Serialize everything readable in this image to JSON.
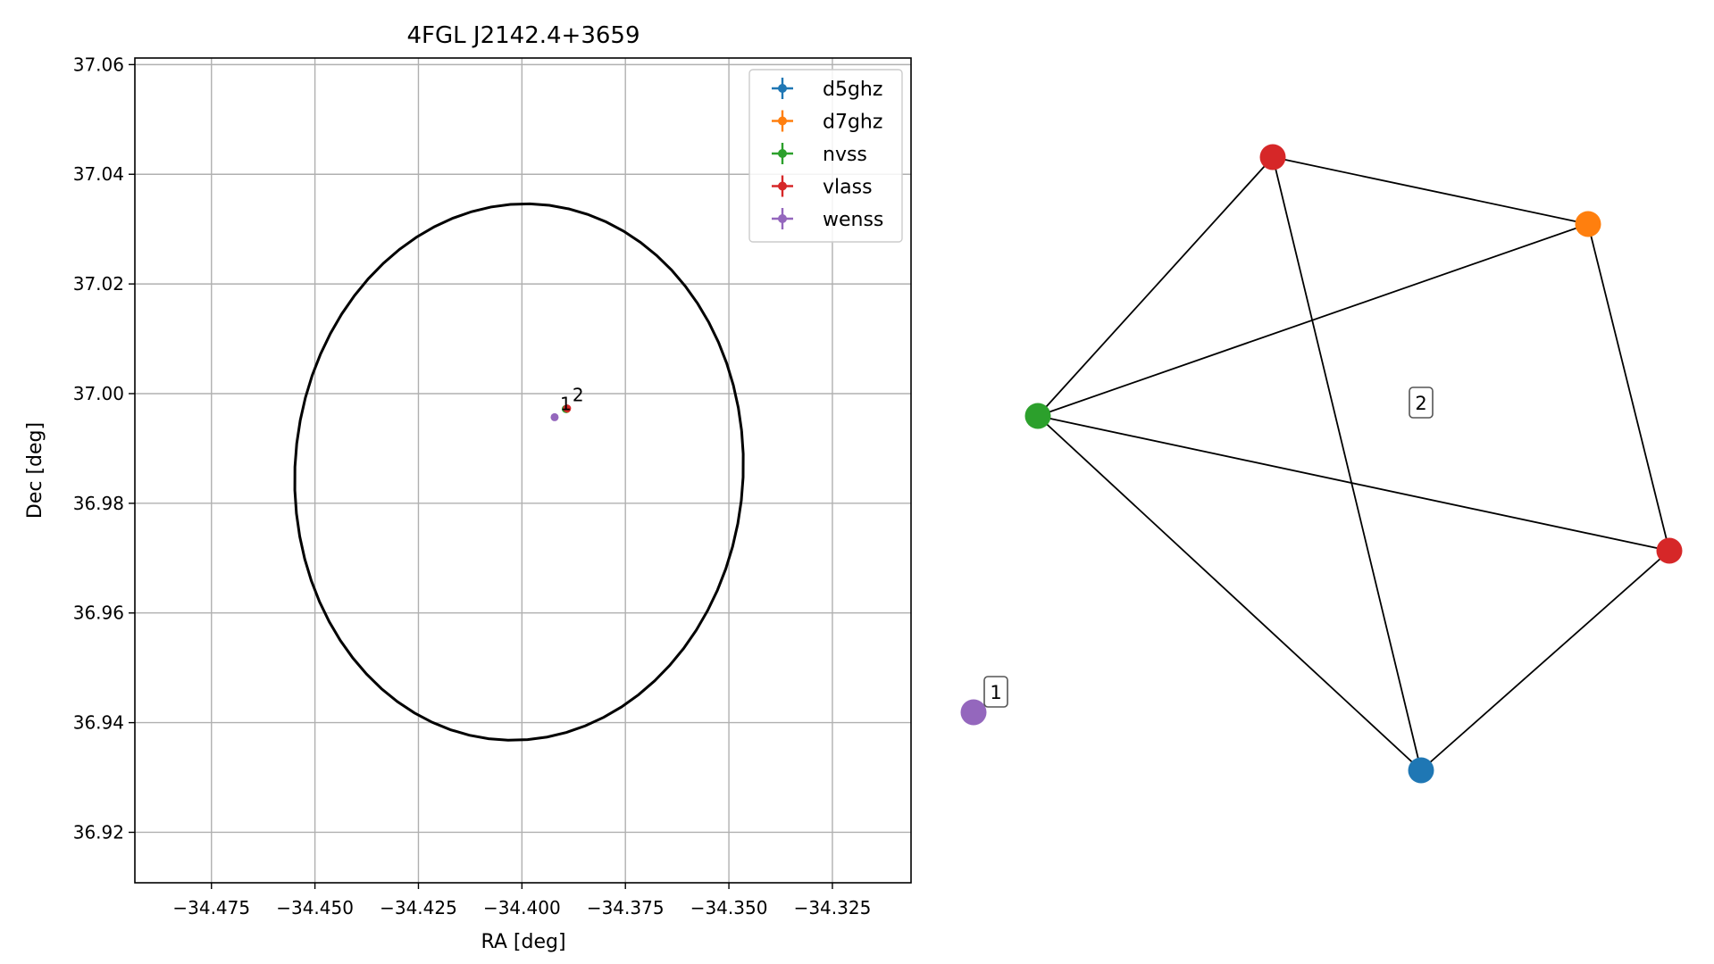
{
  "chart_data": [
    {
      "type": "scatter",
      "title": "4FGL J2142.4+3659",
      "xlabel": "RA [deg]",
      "ylabel": "Dec [deg]",
      "xlim": [
        -34.4935,
        -34.306
      ],
      "ylim": [
        36.9108,
        37.0612
      ],
      "xticks": [
        -34.475,
        -34.45,
        -34.425,
        -34.4,
        -34.375,
        -34.35,
        -34.325
      ],
      "xtick_labels": [
        "−34.475",
        "−34.450",
        "−34.425",
        "−34.400",
        "−34.375",
        "−34.350",
        "−34.325"
      ],
      "yticks": [
        36.92,
        36.94,
        36.96,
        36.98,
        37.0,
        37.02,
        37.04,
        37.06
      ],
      "ytick_labels": [
        "36.92",
        "36.94",
        "36.96",
        "36.98",
        "37.00",
        "37.02",
        "37.04",
        "37.06"
      ],
      "grid": true,
      "legend_position": "top-right",
      "ellipse": {
        "center": [
          -34.4007,
          36.9857
        ],
        "semi_axis_ra": 0.0543,
        "semi_axis_dec": 0.0488,
        "angle_deg": 8
      },
      "series": [
        {
          "name": "d5ghz",
          "color": "#1f77b4",
          "points": [
            [
              -34.3892,
              36.9972
            ]
          ]
        },
        {
          "name": "d7ghz",
          "color": "#ff7f0e",
          "points": [
            [
              -34.3892,
              36.9972
            ]
          ]
        },
        {
          "name": "nvss",
          "color": "#2ca02c",
          "points": [
            [
              -34.3894,
              36.9972
            ]
          ]
        },
        {
          "name": "vlass",
          "color": "#d62728",
          "points": [
            [
              -34.3891,
              36.9973
            ]
          ]
        },
        {
          "name": "wenss",
          "color": "#9467bd",
          "points": [
            [
              -34.3921,
              36.9957
            ]
          ]
        }
      ],
      "point_labels": [
        {
          "text": "1",
          "x": -34.3921,
          "y": 36.9957
        },
        {
          "text": "2",
          "x": -34.3891,
          "y": 36.9973
        }
      ]
    },
    {
      "type": "network",
      "nodes": [
        {
          "id": "d5ghz",
          "color": "#1f77b4"
        },
        {
          "id": "d7ghz",
          "color": "#ff7f0e"
        },
        {
          "id": "nvss",
          "color": "#2ca02c"
        },
        {
          "id": "vlass_a",
          "color": "#d62728"
        },
        {
          "id": "vlass_b",
          "color": "#d62728"
        },
        {
          "id": "wenss",
          "color": "#9467bd"
        }
      ],
      "edges": [
        [
          "vlass_a",
          "d7ghz"
        ],
        [
          "vlass_a",
          "nvss"
        ],
        [
          "vlass_a",
          "d5ghz"
        ],
        [
          "d7ghz",
          "nvss"
        ],
        [
          "d7ghz",
          "vlass_b"
        ],
        [
          "nvss",
          "vlass_b"
        ],
        [
          "nvss",
          "d5ghz"
        ],
        [
          "d5ghz",
          "vlass_b"
        ]
      ],
      "cluster_labels": [
        {
          "text": "2",
          "cluster": [
            "d5ghz",
            "d7ghz",
            "nvss",
            "vlass_a",
            "vlass_b"
          ]
        },
        {
          "text": "1",
          "cluster": [
            "wenss"
          ]
        }
      ]
    }
  ]
}
